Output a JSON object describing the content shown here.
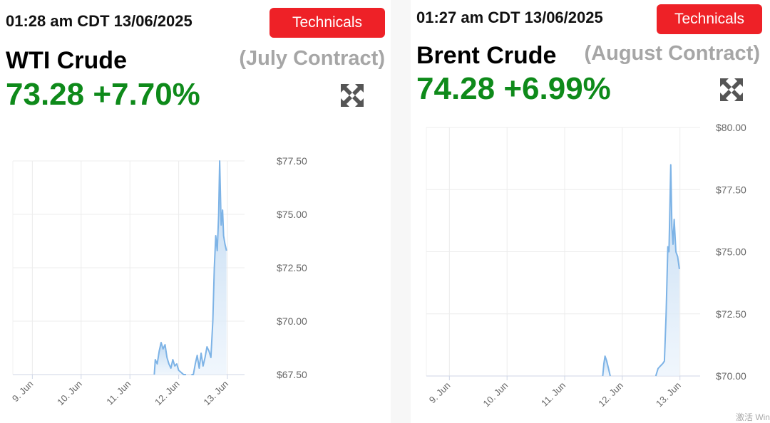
{
  "left": {
    "timestamp": "01:28 am CDT 13/06/2025",
    "button_label": "Technicals",
    "name": "WTI Crude",
    "contract": "(July Contract)",
    "price": "73.28",
    "change": "+7.70%",
    "price_color": "#0e8a1a"
  },
  "right": {
    "timestamp": "01:27 am CDT 13/06/2025",
    "button_label": "Technicals",
    "name": "Brent Crude",
    "contract": "(August Contract)",
    "price": "74.28",
    "change": "+6.99%",
    "price_color": "#0e8a1a"
  },
  "icons": {
    "expand": "expand-arrows-icon"
  },
  "colors": {
    "button": "#ee2127",
    "line": "#7db3e6",
    "fill_top": "#b9d5f0",
    "fill_bottom": "#eaf3fc"
  },
  "watermark": "激活 Win",
  "chart_data": [
    {
      "type": "area",
      "title": "",
      "xlabel": "",
      "ylabel": "",
      "categories": [
        "9. Jun",
        "10. Jun",
        "11. Jun",
        "12. Jun",
        "13. Jun"
      ],
      "x_range": [
        8.6,
        13.35
      ],
      "ylim": [
        67.5,
        77.5
      ],
      "y_ticks": [
        "$67.50",
        "$70.00",
        "$72.50",
        "$75.00",
        "$77.50"
      ],
      "grid": true,
      "axis_position": "right",
      "series": [
        {
          "segments": [
            [
              [
                11.5,
                67.5
              ],
              [
                11.52,
                68.2
              ],
              [
                11.56,
                68.0
              ],
              [
                11.6,
                68.6
              ],
              [
                11.64,
                69.0
              ],
              [
                11.68,
                68.7
              ],
              [
                11.72,
                68.9
              ],
              [
                11.76,
                68.3
              ],
              [
                11.8,
                68.0
              ],
              [
                11.84,
                67.8
              ],
              [
                11.88,
                68.2
              ],
              [
                11.92,
                67.9
              ],
              [
                11.96,
                68.0
              ],
              [
                12.0,
                67.7
              ],
              [
                12.05,
                67.6
              ],
              [
                12.1,
                67.5
              ],
              [
                12.15,
                67.5
              ]
            ],
            [
              [
                12.26,
                67.5
              ],
              [
                12.3,
                67.5
              ],
              [
                12.34,
                68.0
              ],
              [
                12.38,
                68.4
              ],
              [
                12.42,
                67.8
              ],
              [
                12.46,
                68.5
              ],
              [
                12.5,
                67.9
              ],
              [
                12.54,
                68.3
              ],
              [
                12.58,
                68.8
              ],
              [
                12.62,
                68.6
              ],
              [
                12.66,
                68.3
              ],
              [
                12.7,
                70.0
              ],
              [
                12.73,
                72.5
              ],
              [
                12.76,
                74.0
              ],
              [
                12.79,
                73.3
              ],
              [
                12.82,
                75.0
              ],
              [
                12.84,
                77.5
              ],
              [
                12.87,
                74.5
              ],
              [
                12.9,
                75.2
              ],
              [
                12.92,
                74.0
              ],
              [
                12.95,
                73.6
              ],
              [
                12.98,
                73.3
              ]
            ]
          ]
        }
      ]
    },
    {
      "type": "area",
      "title": "",
      "xlabel": "",
      "ylabel": "",
      "categories": [
        "9. Jun",
        "10. Jun",
        "11. Jun",
        "12. Jun",
        "13. Jun"
      ],
      "x_range": [
        8.6,
        13.35
      ],
      "ylim": [
        70,
        80
      ],
      "y_ticks": [
        "$70.00",
        "$72.50",
        "$75.00",
        "$77.50",
        "$80.00"
      ],
      "grid": true,
      "axis_position": "right",
      "series": [
        {
          "segments": [
            [
              [
                11.66,
                70.0
              ],
              [
                11.68,
                70.5
              ],
              [
                11.7,
                70.8
              ],
              [
                11.73,
                70.6
              ],
              [
                11.76,
                70.3
              ],
              [
                11.79,
                70.0
              ]
            ],
            [
              [
                12.58,
                70.0
              ],
              [
                12.62,
                70.3
              ],
              [
                12.66,
                70.4
              ],
              [
                12.7,
                70.5
              ],
              [
                12.73,
                70.6
              ],
              [
                12.76,
                72.5
              ],
              [
                12.79,
                75.2
              ],
              [
                12.81,
                75.0
              ],
              [
                12.84,
                78.5
              ],
              [
                12.86,
                76.0
              ],
              [
                12.88,
                75.3
              ],
              [
                12.9,
                76.3
              ],
              [
                12.93,
                75.0
              ],
              [
                12.96,
                74.8
              ],
              [
                12.99,
                74.3
              ]
            ]
          ]
        }
      ]
    }
  ]
}
